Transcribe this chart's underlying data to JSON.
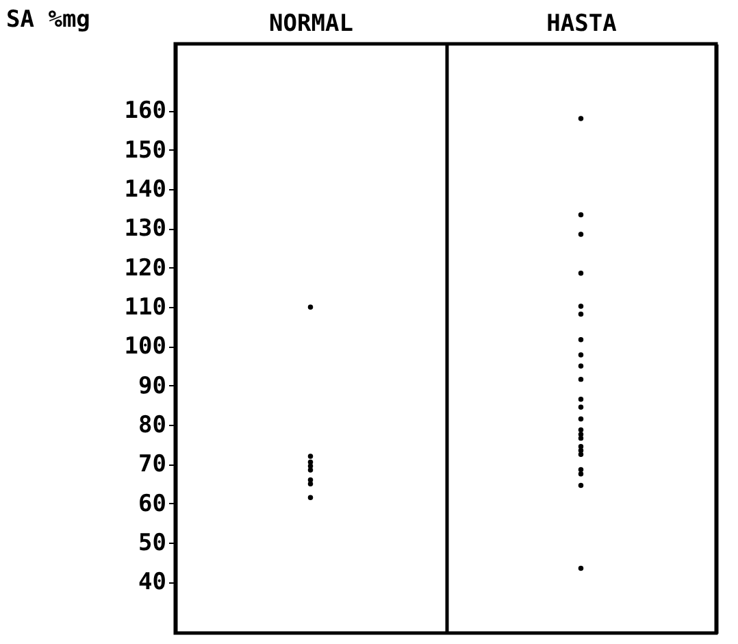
{
  "chart_data": {
    "type": "scatter",
    "ylabel": "SA %mg",
    "categories": [
      "NORMAL",
      "HASTA"
    ],
    "ylim": [
      27,
      177
    ],
    "yticks": [
      40,
      50,
      60,
      70,
      80,
      90,
      100,
      110,
      120,
      130,
      140,
      150,
      160
    ],
    "marker": "circle",
    "series": [
      {
        "color": "#000000",
        "x": [
          "NORMAL",
          "NORMAL",
          "NORMAL",
          "NORMAL",
          "NORMAL",
          "NORMAL",
          "NORMAL",
          "NORMAL"
        ],
        "values": [
          110,
          61.5,
          65,
          66,
          68.5,
          69.5,
          70.5,
          72
        ]
      },
      {
        "color": "#000000",
        "x": [
          "HASTA",
          "HASTA",
          "HASTA",
          "HASTA",
          "HASTA",
          "HASTA",
          "HASTA",
          "HASTA",
          "HASTA",
          "HASTA",
          "HASTA",
          "HASTA",
          "HASTA",
          "HASTA",
          "HASTA",
          "HASTA",
          "HASTA",
          "HASTA",
          "HASTA",
          "HASTA",
          "HASTA",
          "HASTA",
          "HASTA"
        ],
        "values": [
          158,
          133.5,
          128.5,
          118.6,
          110.2,
          108.2,
          101.7,
          97.8,
          95,
          91.6,
          86.5,
          84.5,
          81.5,
          78.7,
          77.6,
          76.6,
          74.5,
          73.5,
          72.5,
          68.6,
          67.5,
          64.6,
          43.5
        ]
      }
    ]
  }
}
